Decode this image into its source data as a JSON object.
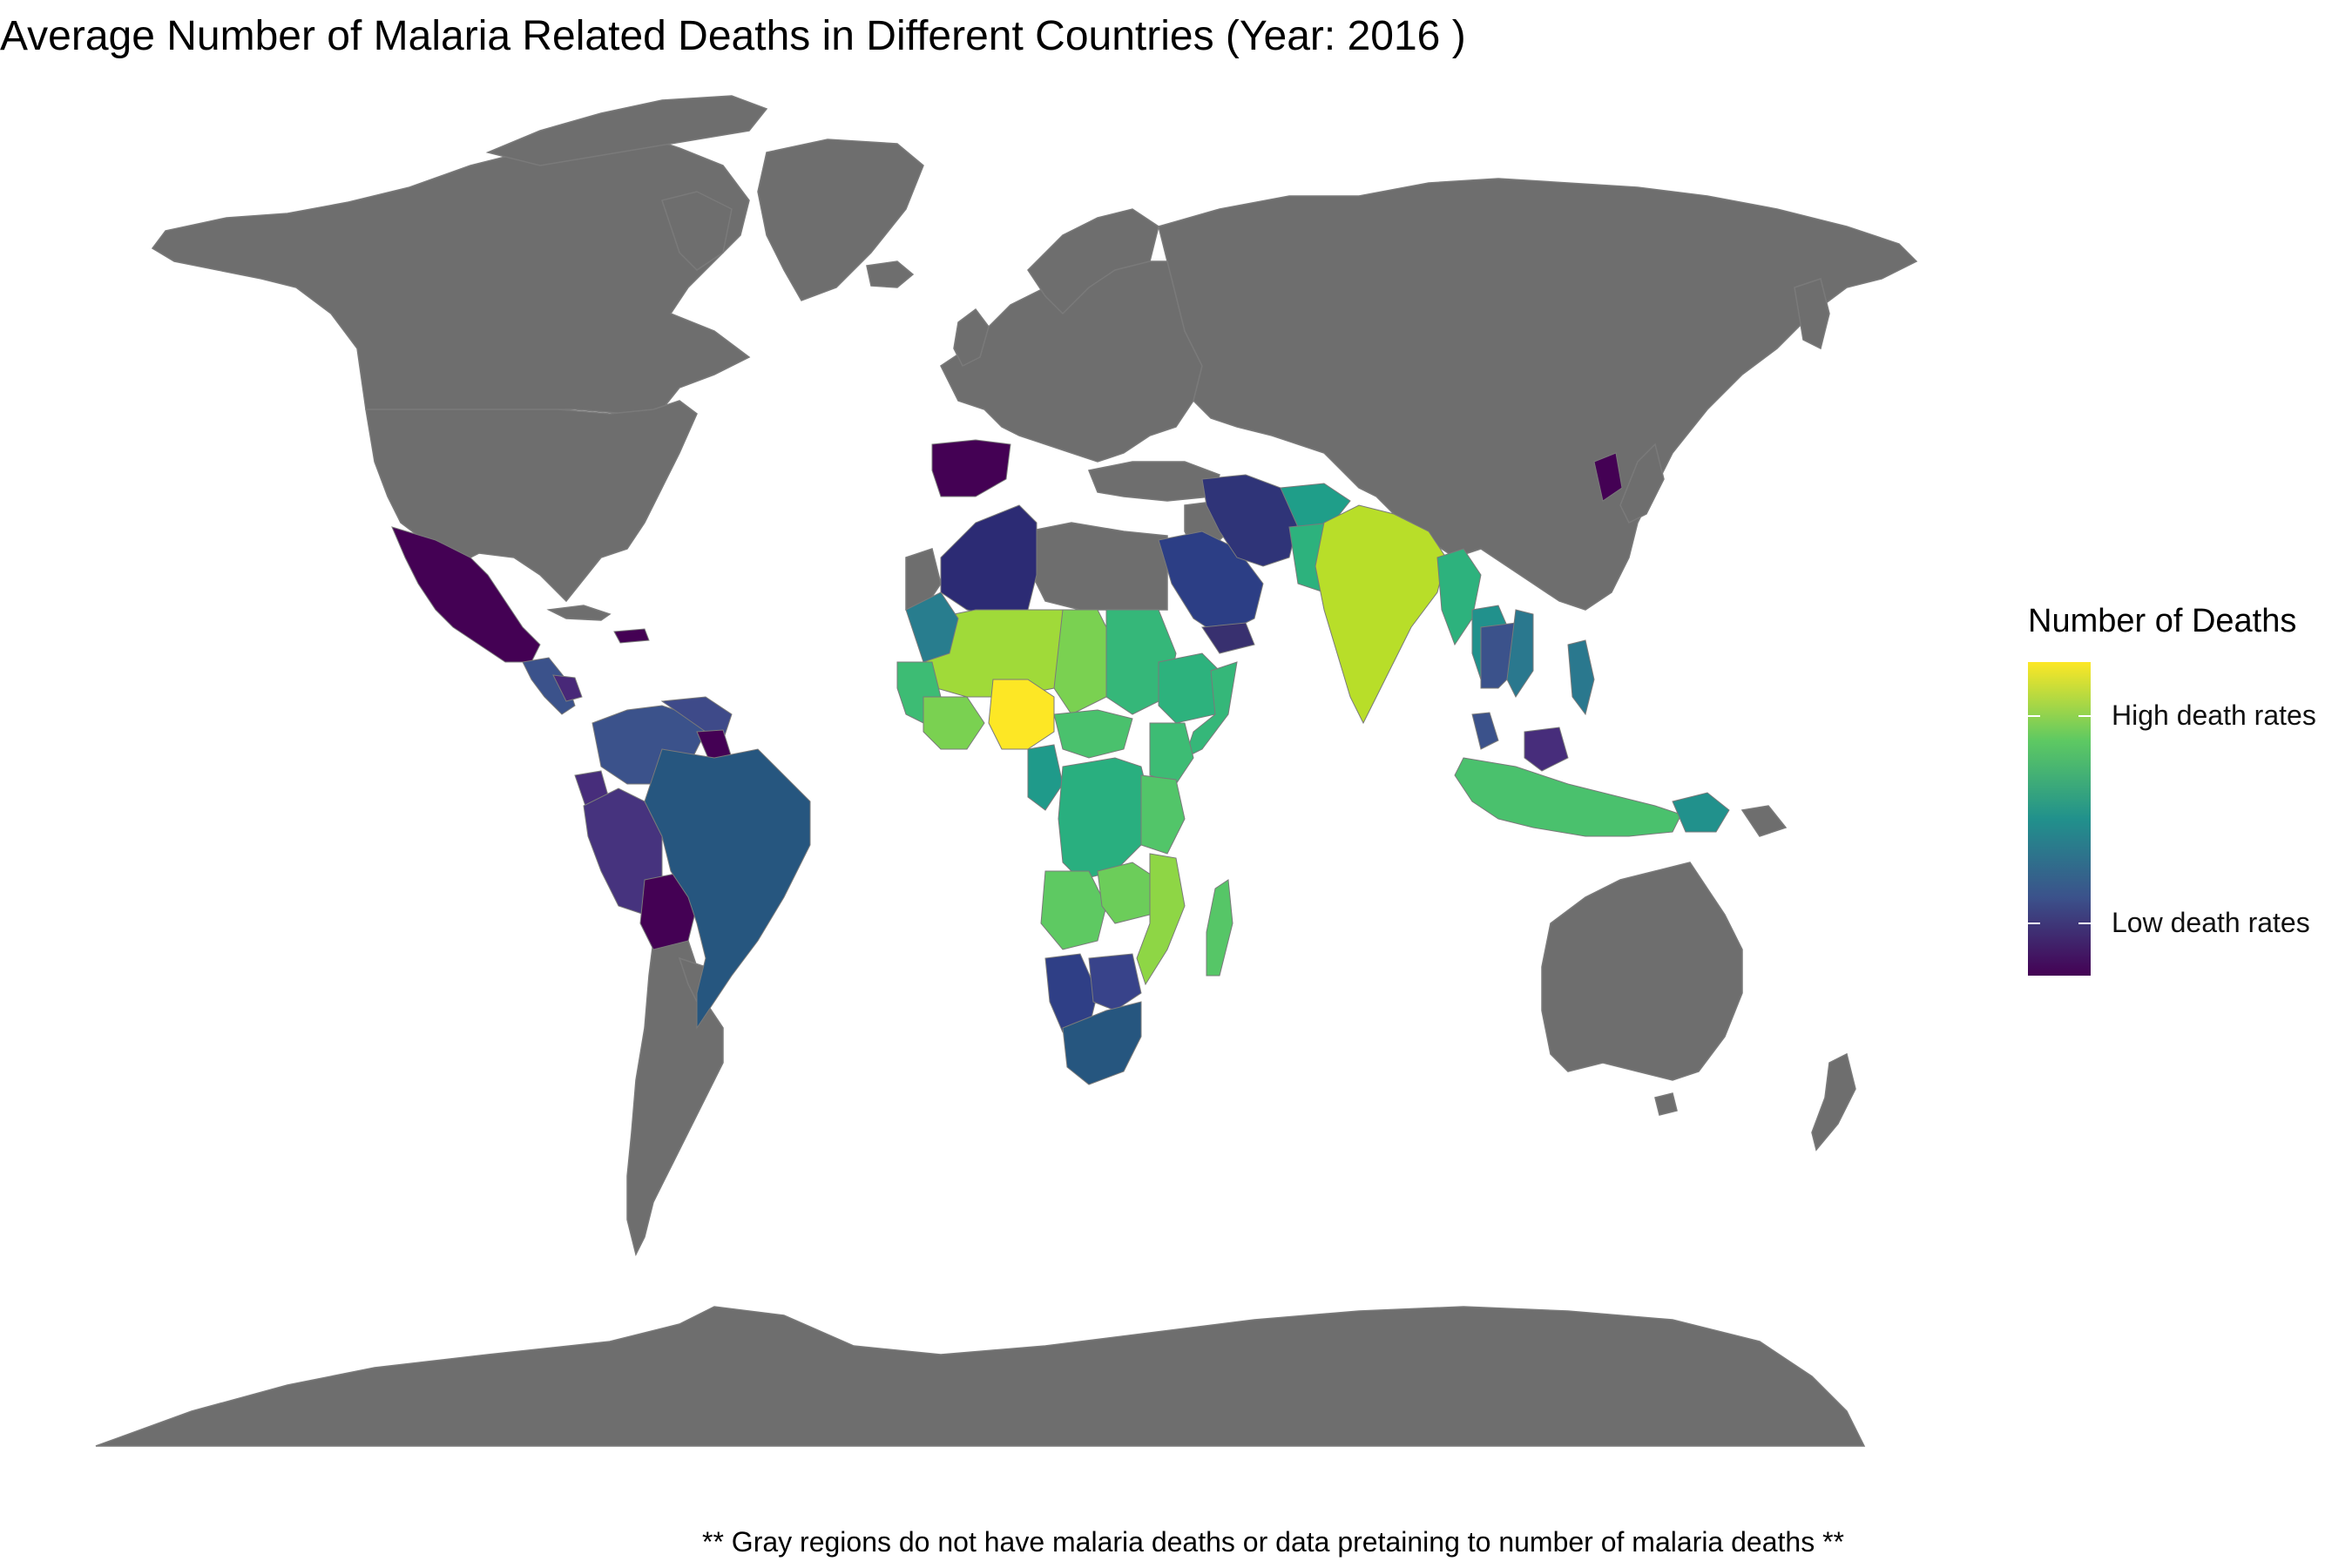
{
  "title": "Average Number of Malaria Related Deaths in Different Countries (Year: 2016 )",
  "legend": {
    "title": "Number of Deaths",
    "high_label": "High death rates",
    "low_label": "Low death rates",
    "scale": "viridis",
    "colors": [
      "#440154",
      "#3b528b",
      "#21918c",
      "#5ec962",
      "#fde725"
    ]
  },
  "caption": "** Gray regions do not have malaria deaths or data pretaining to number of malaria deaths **",
  "colors": {
    "no_data": "#6e6e6e",
    "background": "#ffffff"
  }
}
